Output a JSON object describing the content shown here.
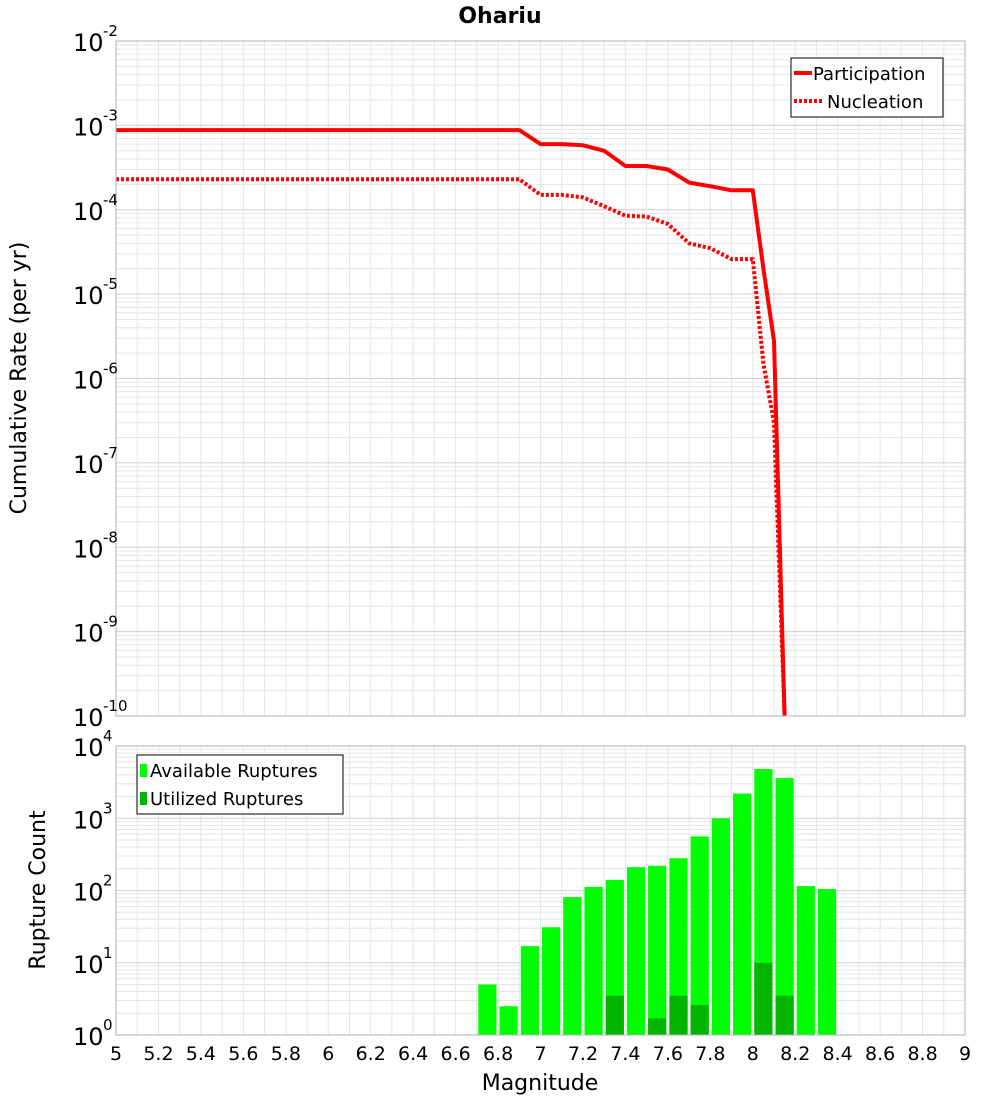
{
  "chart_data": [
    {
      "type": "line",
      "title": "Ohariu",
      "xlabel": "",
      "ylabel": "Cumulative Rate (per yr)",
      "yscale": "log",
      "xlim": [
        5,
        9
      ],
      "ylim": [
        1e-10,
        0.01
      ],
      "ytick_exponents": [
        -2,
        -3,
        -4,
        -5,
        -6,
        -7,
        -8,
        -9,
        -10
      ],
      "grid": true,
      "legend": "top-right",
      "series": [
        {
          "name": "Participation",
          "style": "solid",
          "color": "#ff0000",
          "x": [
            5.0,
            6.9,
            7.0,
            7.1,
            7.2,
            7.3,
            7.4,
            7.5,
            7.6,
            7.7,
            7.8,
            7.9,
            8.0,
            8.05,
            8.1,
            8.15
          ],
          "y": [
            0.00088,
            0.00088,
            0.0006,
            0.0006,
            0.00058,
            0.0005,
            0.00033,
            0.00033,
            0.0003,
            0.00021,
            0.00019,
            0.00017,
            0.00017,
            2e-05,
            2.8e-06,
            1e-10
          ]
        },
        {
          "name": "Nucleation",
          "style": "dotted",
          "color": "#ff0000",
          "x": [
            5.0,
            6.9,
            7.0,
            7.1,
            7.2,
            7.3,
            7.4,
            7.5,
            7.6,
            7.7,
            7.8,
            7.9,
            8.0,
            8.05,
            8.1,
            8.15
          ],
          "y": [
            0.00023,
            0.00023,
            0.00015,
            0.00015,
            0.00014,
            0.00011,
            8.5e-05,
            8.3e-05,
            6.8e-05,
            4e-05,
            3.5e-05,
            2.6e-05,
            2.6e-05,
            1.5e-06,
            3e-07,
            1e-10
          ]
        }
      ]
    },
    {
      "type": "bar",
      "title": "",
      "xlabel": "Magnitude",
      "ylabel": "Rupture Count",
      "yscale": "log",
      "xlim": [
        5,
        9
      ],
      "ylim": [
        1,
        10000
      ],
      "ytick_exponents": [
        0,
        1,
        2,
        3,
        4
      ],
      "xticks": [
        "5",
        "5.2",
        "5.4",
        "5.6",
        "5.8",
        "6",
        "6.2",
        "6.4",
        "6.6",
        "6.8",
        "7",
        "7.2",
        "7.4",
        "7.6",
        "7.8",
        "8",
        "8.2",
        "8.4",
        "8.6",
        "8.8",
        "9"
      ],
      "bin_width": 0.1,
      "grid": true,
      "legend": "top-left",
      "series": [
        {
          "name": "Available Ruptures",
          "color": "#00ff00",
          "x": [
            6.75,
            6.85,
            6.95,
            7.05,
            7.15,
            7.25,
            7.35,
            7.45,
            7.55,
            7.65,
            7.75,
            7.85,
            7.95,
            8.05,
            8.15,
            8.25,
            8.35
          ],
          "values": [
            5,
            2.5,
            17,
            31,
            81,
            112,
            140,
            210,
            220,
            280,
            560,
            1000,
            2200,
            4800,
            3600,
            115,
            105
          ]
        },
        {
          "name": "Utilized Ruptures",
          "color": "#00b400",
          "x": [
            6.95,
            7.05,
            7.15,
            7.25,
            7.35,
            7.55,
            7.65,
            7.75,
            7.85,
            8.05,
            8.15
          ],
          "values": [
            1,
            1,
            1,
            1,
            3.5,
            1.7,
            3.5,
            2.6,
            1,
            10,
            3.5
          ]
        }
      ]
    }
  ]
}
